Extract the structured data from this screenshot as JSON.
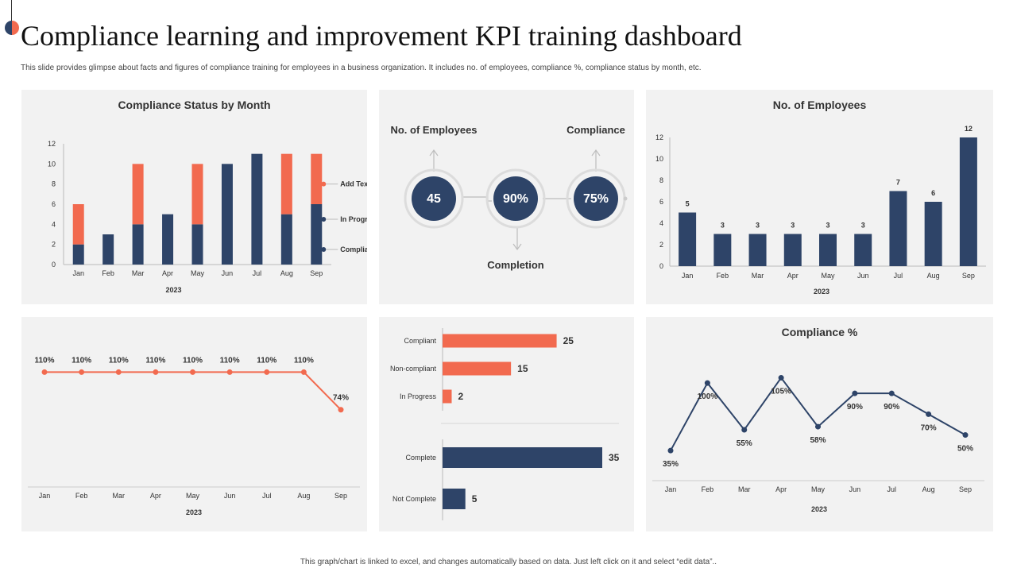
{
  "header": {
    "title": "Compliance learning and improvement KPI training dashboard",
    "subtitle": "This slide provides glimpse about facts and figures of compliance training  for employees in a business organization. It includes no. of employees, compliance %, compliance status by month, etc.",
    "footer": "This graph/chart is linked to excel, and changes automatically based on data. Just left click on it and select “edit data”.."
  },
  "colors": {
    "navy": "#2e4468",
    "orange": "#f26a4f",
    "panel": "#f2f2f2",
    "axis": "#555555"
  },
  "kpi": {
    "employees_label": "No. of Employees",
    "employees_value": "45",
    "compliance_label": "Compliance",
    "compliance_value": "75%",
    "completion_label": "Completion",
    "completion_value": "90%"
  },
  "chart_data": [
    {
      "id": "status",
      "type": "bar",
      "stacked": true,
      "title": "Compliance Status by Month",
      "xlabel": "2023",
      "categories": [
        "Jan",
        "Feb",
        "Mar",
        "Apr",
        "May",
        "Jun",
        "Jul",
        "Aug",
        "Sep"
      ],
      "ylim": [
        0,
        12
      ],
      "yticks": [
        "0",
        "2",
        "4",
        "6",
        "8",
        "10",
        "12"
      ],
      "series": [
        {
          "name": "Compliant",
          "color": "#2e4468",
          "values": [
            2,
            3,
            4,
            5,
            4,
            10,
            11,
            5,
            3
          ]
        },
        {
          "name": "In Progress",
          "color": "#2e4468",
          "values": [
            0,
            0,
            0,
            0,
            0,
            0,
            0,
            0,
            3
          ]
        },
        {
          "name": "Add Text Here",
          "color": "#f26a4f",
          "values": [
            4,
            0,
            6,
            0,
            6,
            0,
            0,
            6,
            5
          ]
        }
      ],
      "legend": [
        "Add Text Here",
        "In Progress",
        "Compliant"
      ]
    },
    {
      "id": "employees",
      "type": "bar",
      "title": "No. of Employees",
      "xlabel": "2023",
      "categories": [
        "Jan",
        "Feb",
        "Mar",
        "Apr",
        "May",
        "Jun",
        "Jul",
        "Aug",
        "Sep"
      ],
      "values": [
        5,
        3,
        3,
        3,
        3,
        3,
        7,
        6,
        12
      ],
      "labels": [
        "5",
        "3",
        "3",
        "3",
        "3",
        "3",
        "7",
        "6",
        "12"
      ],
      "ylim": [
        0,
        12
      ],
      "yticks": [
        "0",
        "2",
        "4",
        "6",
        "8",
        "10",
        "12"
      ]
    },
    {
      "id": "trend",
      "type": "line",
      "title": "",
      "xlabel": "2023",
      "categories": [
        "Jan",
        "Feb",
        "Mar",
        "Apr",
        "May",
        "Jun",
        "Jul",
        "Aug",
        "Sep"
      ],
      "values": [
        110,
        110,
        110,
        110,
        110,
        110,
        110,
        110,
        74
      ],
      "labels": [
        "110%",
        "110%",
        "110%",
        "110%",
        "110%",
        "110%",
        "110%",
        "110%",
        "74%"
      ],
      "ylim": [
        0,
        140
      ]
    },
    {
      "id": "status_bars",
      "type": "bar",
      "orientation": "horizontal",
      "title": "",
      "groups": [
        {
          "categories": [
            "Compliant",
            "Non-compliant",
            "In Progress"
          ],
          "values": [
            25,
            15,
            2
          ],
          "labels": [
            "25",
            "15",
            "2"
          ],
          "color": "#f26a4f"
        },
        {
          "categories": [
            "Complete",
            "Not Complete"
          ],
          "values": [
            35,
            5
          ],
          "labels": [
            "35",
            "5"
          ],
          "color": "#2e4468"
        }
      ],
      "xlim": [
        0,
        35
      ]
    },
    {
      "id": "compliance_pct",
      "type": "line",
      "title": "Compliance %",
      "xlabel": "2023",
      "categories": [
        "Jan",
        "Feb",
        "Mar",
        "Apr",
        "May",
        "Jun",
        "Jul",
        "Aug",
        "Sep"
      ],
      "values": [
        35,
        100,
        55,
        105,
        58,
        90,
        90,
        70,
        50
      ],
      "labels": [
        "35%",
        "100%",
        "55%",
        "105%",
        "58%",
        "90%",
        "90%",
        "70%",
        "50%"
      ],
      "ylim": [
        0,
        110
      ]
    }
  ]
}
